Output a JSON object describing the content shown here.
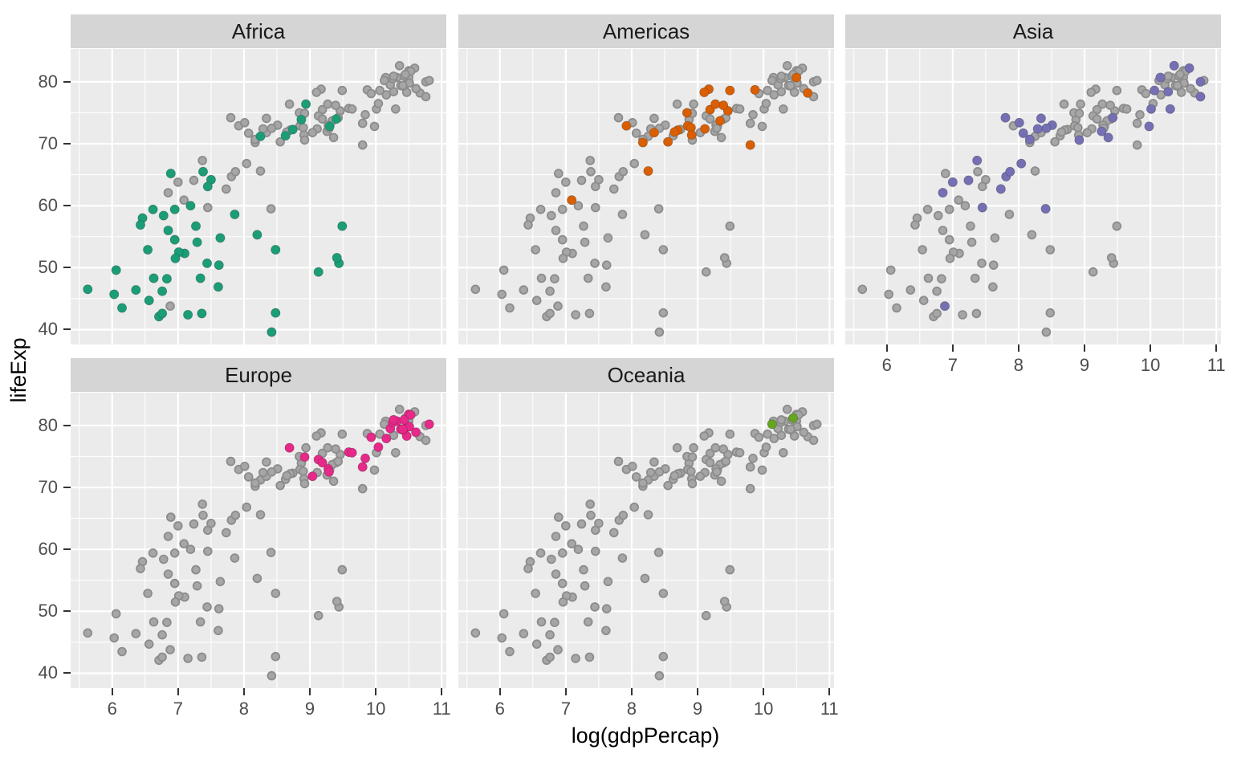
{
  "chart_data": {
    "type": "scatter",
    "title": "",
    "xlabel": "log(gdpPercap)",
    "ylabel": "lifeExp",
    "facets": [
      "Africa",
      "Americas",
      "Asia",
      "Europe",
      "Oceania"
    ],
    "x_ticks": [
      6,
      7,
      8,
      9,
      10,
      11
    ],
    "y_ticks": [
      40,
      50,
      60,
      70,
      80
    ],
    "x_minor_ticks": [
      5.5,
      6.5,
      7.5,
      8.5,
      9.5,
      10.5
    ],
    "y_minor_ticks": [
      45,
      55,
      65,
      75
    ],
    "xlim": [
      5.37,
      11.07
    ],
    "ylim": [
      37.6,
      85.3
    ],
    "grid": true,
    "legend": "none",
    "panel_background": "#EBEBEB",
    "strip_background": "#D5D5D5",
    "gridline_color": "#FFFFFF",
    "base_point_fill": "#A6A6A6",
    "base_point_stroke": "#8C8C8C",
    "tick_color": "#333333",
    "tick_label_color": "#4D4D4D",
    "description": "Each panel shows all countries in grey (lifeExp vs log gdpPercap) with the panel's own continent highlighted in color",
    "series": [
      {
        "name": "Africa",
        "color": "#1B9E77",
        "points": [
          [
            8.74,
            72.3
          ],
          [
            8.48,
            42.7
          ],
          [
            7.27,
            56.7
          ],
          [
            9.44,
            50.7
          ],
          [
            7.1,
            52.3
          ],
          [
            6.06,
            49.6
          ],
          [
            7.62,
            50.4
          ],
          [
            6.56,
            44.7
          ],
          [
            7.44,
            50.7
          ],
          [
            6.89,
            65.2
          ],
          [
            5.63,
            46.5
          ],
          [
            8.2,
            55.3
          ],
          [
            7.34,
            48.3
          ],
          [
            7.64,
            54.8
          ],
          [
            8.63,
            71.3
          ],
          [
            9.41,
            51.6
          ],
          [
            6.46,
            58.0
          ],
          [
            6.54,
            52.9
          ],
          [
            9.49,
            56.7
          ],
          [
            6.62,
            59.4
          ],
          [
            7.19,
            60.0
          ],
          [
            6.85,
            56.0
          ],
          [
            6.36,
            46.4
          ],
          [
            7.29,
            54.1
          ],
          [
            7.36,
            42.6
          ],
          [
            6.03,
            45.7
          ],
          [
            9.4,
            74.0
          ],
          [
            6.95,
            59.4
          ],
          [
            6.63,
            48.3
          ],
          [
            6.95,
            54.5
          ],
          [
            7.5,
            64.2
          ],
          [
            9.3,
            72.8
          ],
          [
            8.25,
            71.2
          ],
          [
            6.71,
            42.1
          ],
          [
            8.48,
            52.9
          ],
          [
            6.43,
            56.9
          ],
          [
            7.61,
            46.9
          ],
          [
            8.94,
            76.4
          ],
          [
            6.76,
            46.2
          ],
          [
            7.38,
            65.5
          ],
          [
            7.45,
            63.1
          ],
          [
            6.76,
            42.6
          ],
          [
            6.83,
            48.2
          ],
          [
            9.13,
            49.3
          ],
          [
            7.86,
            58.6
          ],
          [
            8.42,
            39.6
          ],
          [
            7.01,
            52.5
          ],
          [
            6.78,
            58.4
          ],
          [
            8.87,
            73.9
          ],
          [
            6.96,
            51.5
          ],
          [
            7.15,
            42.4
          ],
          [
            6.15,
            43.5
          ]
        ]
      },
      {
        "name": "Americas",
        "color": "#D95F02",
        "points": [
          [
            9.46,
            75.3
          ],
          [
            8.25,
            65.6
          ],
          [
            9.11,
            72.4
          ],
          [
            10.5,
            80.7
          ],
          [
            9.49,
            78.6
          ],
          [
            8.85,
            72.9
          ],
          [
            9.17,
            78.8
          ],
          [
            9.1,
            78.3
          ],
          [
            8.7,
            72.2
          ],
          [
            8.84,
            75.0
          ],
          [
            8.65,
            71.9
          ],
          [
            8.55,
            70.3
          ],
          [
            7.09,
            60.9
          ],
          [
            8.17,
            70.2
          ],
          [
            8.9,
            72.6
          ],
          [
            9.39,
            76.2
          ],
          [
            7.92,
            72.9
          ],
          [
            9.19,
            75.5
          ],
          [
            8.34,
            71.8
          ],
          [
            8.91,
            71.4
          ],
          [
            9.87,
            78.7
          ],
          [
            9.8,
            69.8
          ],
          [
            10.67,
            78.2
          ],
          [
            9.27,
            76.4
          ],
          [
            9.34,
            73.7
          ]
        ]
      },
      {
        "name": "Asia",
        "color": "#7570B3",
        "points": [
          [
            6.88,
            43.8
          ],
          [
            10.3,
            75.6
          ],
          [
            7.24,
            64.1
          ],
          [
            7.45,
            59.7
          ],
          [
            8.51,
            73.0
          ],
          [
            10.59,
            82.2
          ],
          [
            7.81,
            64.7
          ],
          [
            8.17,
            70.7
          ],
          [
            9.36,
            71.0
          ],
          [
            8.41,
            59.5
          ],
          [
            10.15,
            80.7
          ],
          [
            10.36,
            82.6
          ],
          [
            8.42,
            72.5
          ],
          [
            7.37,
            67.3
          ],
          [
            10.06,
            78.6
          ],
          [
            10.76,
            77.6
          ],
          [
            9.26,
            72.0
          ],
          [
            9.43,
            74.2
          ],
          [
            8.04,
            66.8
          ],
          [
            6.85,
            62.1
          ],
          [
            7.0,
            63.8
          ],
          [
            10.01,
            75.6
          ],
          [
            7.87,
            65.5
          ],
          [
            8.07,
            71.7
          ],
          [
            9.98,
            72.8
          ],
          [
            10.76,
            80.0
          ],
          [
            8.29,
            72.4
          ],
          [
            8.34,
            74.1
          ],
          [
            10.27,
            78.4
          ],
          [
            8.92,
            70.6
          ],
          [
            7.8,
            74.2
          ],
          [
            8.01,
            73.4
          ],
          [
            7.73,
            62.7
          ]
        ]
      },
      {
        "name": "Europe",
        "color": "#E7298A",
        "points": [
          [
            8.69,
            76.4
          ],
          [
            10.49,
            79.8
          ],
          [
            10.43,
            79.4
          ],
          [
            8.92,
            74.9
          ],
          [
            9.28,
            73.0
          ],
          [
            9.59,
            75.7
          ],
          [
            10.04,
            76.5
          ],
          [
            10.47,
            78.3
          ],
          [
            10.41,
            79.3
          ],
          [
            10.32,
            80.7
          ],
          [
            10.38,
            79.4
          ],
          [
            10.22,
            79.5
          ],
          [
            9.8,
            73.3
          ],
          [
            10.5,
            81.8
          ],
          [
            10.61,
            78.9
          ],
          [
            10.26,
            80.5
          ],
          [
            9.13,
            74.5
          ],
          [
            10.51,
            79.8
          ],
          [
            10.81,
            80.2
          ],
          [
            9.64,
            75.6
          ],
          [
            9.93,
            78.1
          ],
          [
            9.29,
            72.5
          ],
          [
            9.19,
            74.0
          ],
          [
            9.84,
            74.7
          ],
          [
            10.16,
            77.9
          ],
          [
            10.27,
            80.9
          ],
          [
            10.43,
            80.9
          ],
          [
            10.53,
            81.7
          ],
          [
            9.04,
            71.8
          ],
          [
            10.41,
            79.4
          ]
        ]
      },
      {
        "name": "Oceania",
        "color": "#66A61E",
        "points": [
          [
            10.45,
            81.2
          ],
          [
            10.13,
            80.2
          ]
        ]
      }
    ]
  }
}
